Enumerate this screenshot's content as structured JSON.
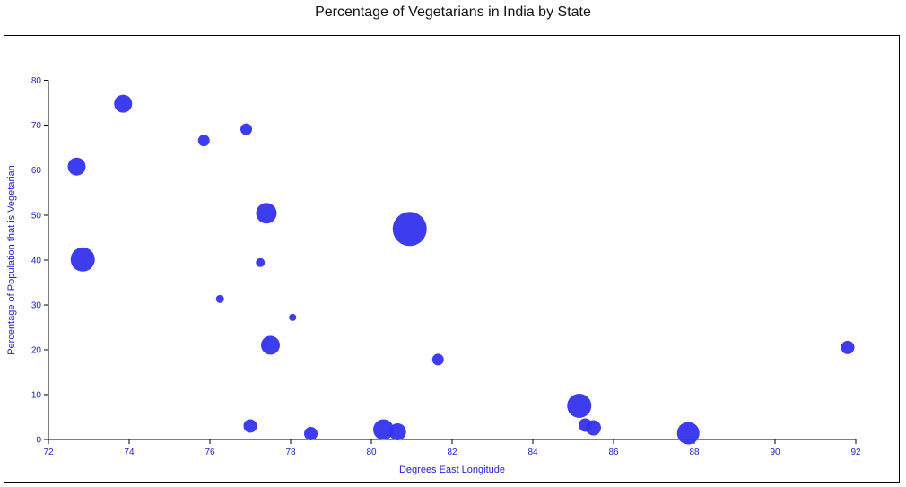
{
  "chart_data": {
    "type": "scatter",
    "title": "Percentage of Vegetarians in India by State",
    "xlabel": "Degrees East Longitude",
    "ylabel": "Percentage of Population that is Vegetarian",
    "xlim": [
      72,
      92
    ],
    "ylim": [
      0,
      85
    ],
    "xticks": [
      72,
      74,
      76,
      78,
      80,
      82,
      84,
      86,
      88,
      90,
      92
    ],
    "yticks": [
      0,
      10,
      20,
      30,
      40,
      50,
      60,
      70,
      80
    ],
    "point_color": "#3333ee",
    "points": [
      {
        "x": 73.85,
        "y": 74.8,
        "r": 10
      },
      {
        "x": 75.85,
        "y": 66.6,
        "r": 6.5
      },
      {
        "x": 76.9,
        "y": 69.1,
        "r": 6.5
      },
      {
        "x": 72.7,
        "y": 60.8,
        "r": 10
      },
      {
        "x": 77.4,
        "y": 50.4,
        "r": 11.5
      },
      {
        "x": 80.95,
        "y": 46.9,
        "r": 19
      },
      {
        "x": 72.85,
        "y": 40.1,
        "r": 13.5
      },
      {
        "x": 77.25,
        "y": 39.4,
        "r": 5
      },
      {
        "x": 76.25,
        "y": 31.3,
        "r": 4.5
      },
      {
        "x": 78.05,
        "y": 27.2,
        "r": 4
      },
      {
        "x": 77.5,
        "y": 21.0,
        "r": 10.5
      },
      {
        "x": 81.65,
        "y": 17.8,
        "r": 6.5
      },
      {
        "x": 91.8,
        "y": 20.5,
        "r": 7.5
      },
      {
        "x": 85.15,
        "y": 7.5,
        "r": 13.5
      },
      {
        "x": 77.0,
        "y": 3.0,
        "r": 7.5
      },
      {
        "x": 85.3,
        "y": 3.2,
        "r": 7.5
      },
      {
        "x": 85.5,
        "y": 2.6,
        "r": 8.5
      },
      {
        "x": 80.3,
        "y": 2.2,
        "r": 11.5
      },
      {
        "x": 80.65,
        "y": 1.7,
        "r": 9.5
      },
      {
        "x": 78.5,
        "y": 1.3,
        "r": 7.5
      },
      {
        "x": 87.85,
        "y": 1.4,
        "r": 12.5
      }
    ]
  }
}
